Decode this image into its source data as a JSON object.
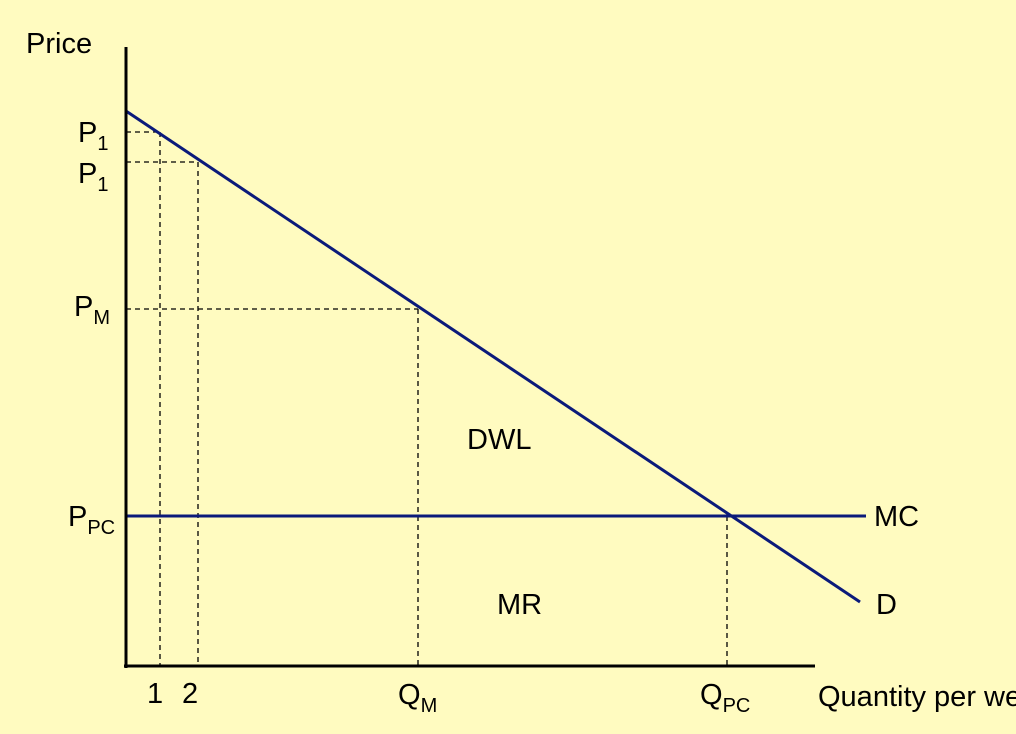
{
  "axes": {
    "y_label": "Price",
    "x_label": "Quantity per week"
  },
  "price_labels": {
    "p1_top": {
      "base": "P",
      "sub": "1"
    },
    "p1_second": {
      "base": "P",
      "sub": "1"
    },
    "pm": {
      "base": "P",
      "sub": "M"
    },
    "ppc": {
      "base": "P",
      "sub": "PC"
    }
  },
  "quantity_labels": {
    "q1": "1",
    "q2": "2",
    "qm": {
      "base": "Q",
      "sub": "M"
    },
    "qpc": {
      "base": "Q",
      "sub": "PC"
    }
  },
  "curve_labels": {
    "mc": "MC",
    "demand": "D"
  },
  "region_labels": {
    "dwl": "DWL",
    "mr": "MR"
  },
  "colors": {
    "background": "#fffbc0",
    "curve": "#0b1a7a",
    "axis": "#000000"
  }
}
